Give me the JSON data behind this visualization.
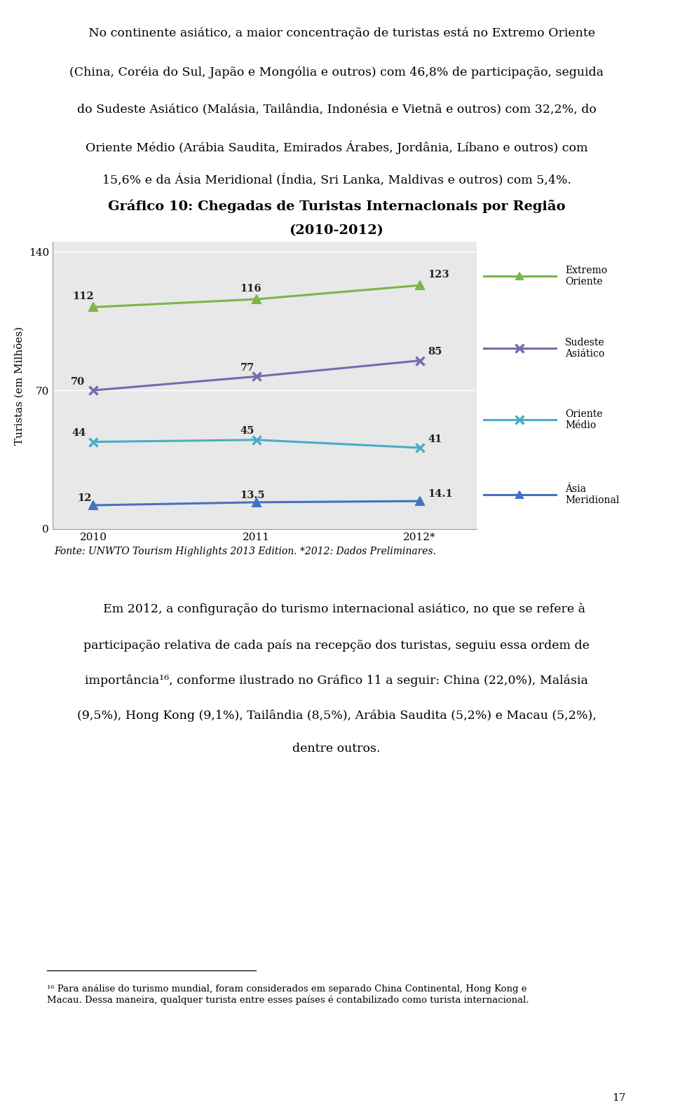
{
  "title_line1": "Gráfico 10: Chegadas de Turistas Internacionais por Região",
  "title_line2": "(2010-2012)",
  "xlabel_ticks": [
    "2010",
    "2011",
    "2012*"
  ],
  "ylabel": "Turistas (em Milhões)",
  "ylim": [
    0,
    145
  ],
  "yticks": [
    0,
    70,
    140
  ],
  "background_color": "#e8e8e8",
  "outer_bg": "#ffffff",
  "series": [
    {
      "name": "Extremo\nOriente",
      "values": [
        112,
        116,
        123
      ],
      "color": "#7ab648",
      "marker": "^",
      "linewidth": 2.2
    },
    {
      "name": "Sudeste\nAsiático",
      "values": [
        70,
        77,
        85
      ],
      "color": "#7b68ae",
      "marker": "x",
      "linewidth": 2.2
    },
    {
      "name": "Oriente\nMédio",
      "values": [
        44,
        45,
        41
      ],
      "color": "#4bacc6",
      "marker": "x",
      "linewidth": 2.2
    },
    {
      "name": "Ásia\nMeridional",
      "values": [
        12,
        13.5,
        14.1
      ],
      "color": "#4472c4",
      "marker": "^",
      "linewidth": 2.2
    }
  ],
  "source_text": "Fonte: UNWTO Tourism Highlights 2013 Edition. *2012: Dados Preliminares.",
  "intro_lines": [
    "   No continente asiático, a maior concentração de turistas está no Extremo Oriente",
    "(China, Coréia do Sul, Japão e Mongólia e outros) com 46,8% de participação, seguida",
    "do Sudeste Asiático (Malásia, Tailândia, Indonésia e Vietnã e outros) com 32,2%, do",
    "Oriente Médio (Arábia Saudita, Emirados Árabes, Jordânia, Líbano e outros) com",
    "15,6% e da Ásia Meridional (Índia, Sri Lanka, Maldivas e outros) com 5,4%."
  ],
  "bottom_lines": [
    "    Em 2012, a configuração do turismo internacional asiático, no que se refere à",
    "participação relativa de cada país na recepção dos turistas, seguiu essa ordem de",
    "importância¹⁶, conforme ilustrado no Gráfico 11 a seguir: China (22,0%), Malásia",
    "(9,5%), Hong Kong (9,1%), Tailândia (8,5%), Arábia Saudita (5,2%) e Macau (5,2%),",
    "dentre outros."
  ],
  "footnote_line": "¹⁶ Para análise do turismo mundial, foram considerados em separado China Continental, Hong Kong e\nMacau. Dessa maneira, qualquer turista entre esses países é contabilizado como turista internacional.",
  "page_number": "17"
}
